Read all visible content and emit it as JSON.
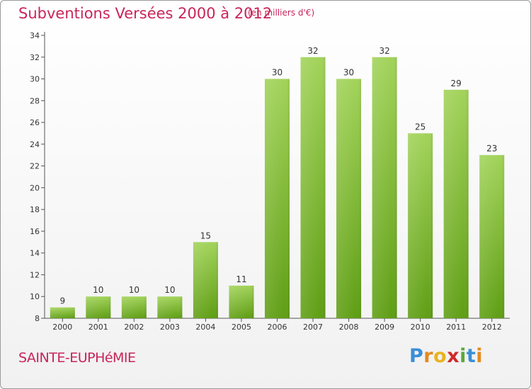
{
  "title": "Subventions Versées 2000 à 2012",
  "subtitle": "(en milliers d'€)",
  "place": "SAINTE-EUPHéMIE",
  "logo": {
    "letters": [
      "P",
      "r",
      "o",
      "x",
      "i",
      "t",
      "i"
    ],
    "colors": [
      "#3a8fd6",
      "#e48a1e",
      "#e9b321",
      "#cf2a2a",
      "#5aa83a",
      "#3a8fd6",
      "#e48a1e"
    ]
  },
  "colors": {
    "accent": "#c8255a",
    "bar_top": "#a2d35a",
    "bar_bottom": "#5f9e14",
    "axis": "#555555"
  },
  "chart_data": {
    "type": "bar",
    "categories": [
      "2000",
      "2001",
      "2002",
      "2003",
      "2004",
      "2005",
      "2006",
      "2007",
      "2008",
      "2009",
      "2010",
      "2011",
      "2012"
    ],
    "values": [
      9,
      10,
      10,
      10,
      15,
      11,
      30,
      32,
      30,
      32,
      25,
      29,
      23
    ],
    "ylim": [
      8,
      34
    ],
    "yticks": [
      8,
      10,
      12,
      14,
      16,
      18,
      20,
      22,
      24,
      26,
      28,
      30,
      32,
      34
    ],
    "grid": false,
    "xlabel": "",
    "ylabel": ""
  }
}
